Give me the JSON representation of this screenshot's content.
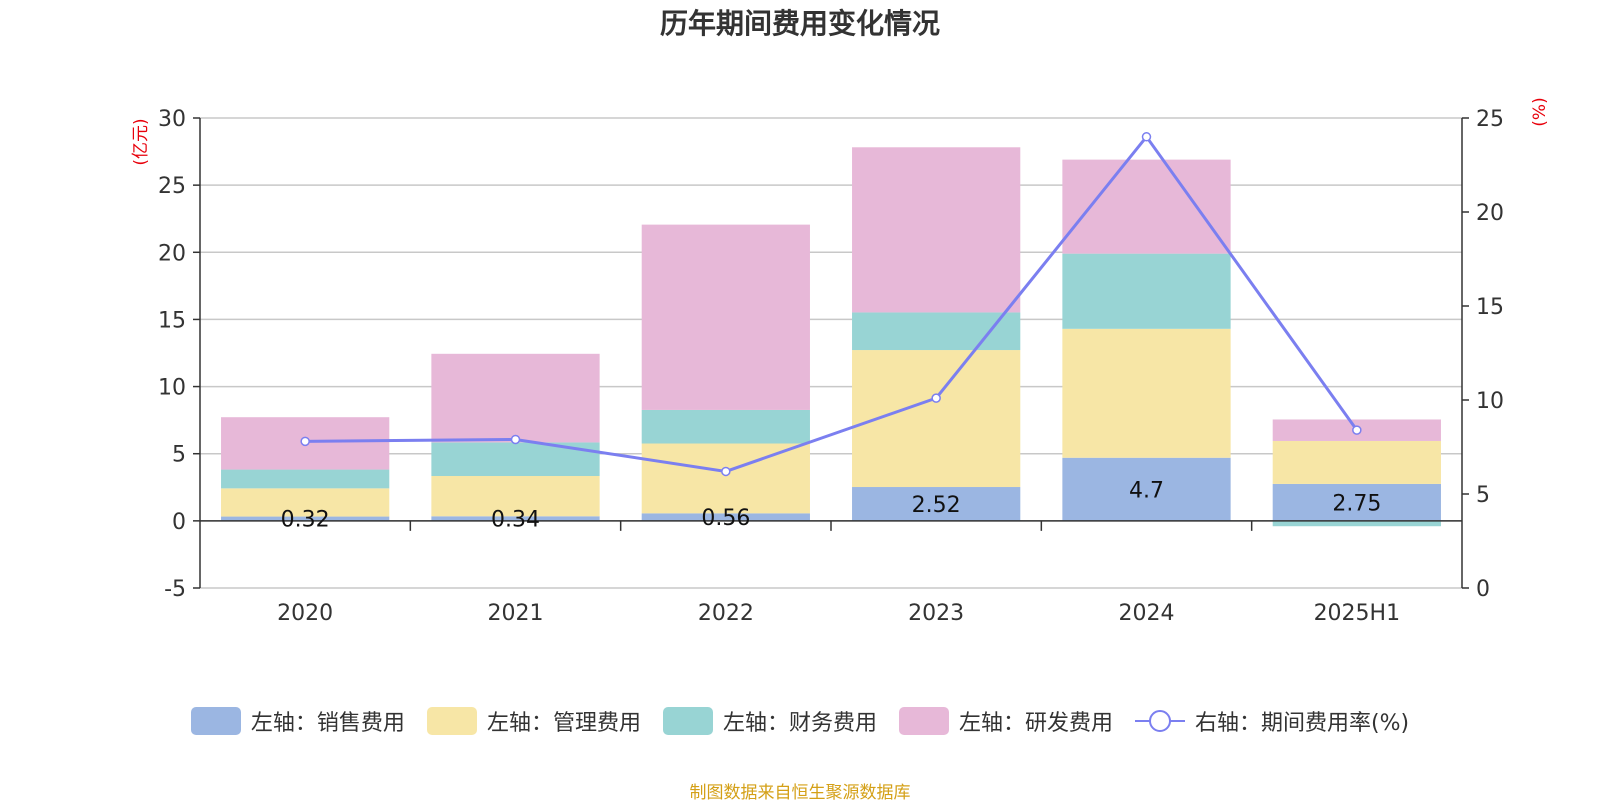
{
  "chart_data": {
    "type": "bar",
    "title": "历年期间费用变化情况",
    "categories": [
      "2020",
      "2021",
      "2022",
      "2023",
      "2024",
      "2025H1"
    ],
    "stacked": true,
    "left_axis": {
      "label": "(亿元)",
      "ylim": [
        -5,
        30
      ],
      "ticks": [
        -5,
        0,
        5,
        10,
        15,
        20,
        25,
        30
      ]
    },
    "right_axis": {
      "label": "(%)",
      "ylim": [
        0,
        25
      ],
      "ticks": [
        0,
        5,
        10,
        15,
        20,
        25
      ]
    },
    "grid": true,
    "legend_position": "bottom",
    "series": [
      {
        "name": "左轴：销售费用",
        "type": "bar",
        "axis": "left",
        "color": "#9bb6e2",
        "values": [
          0.32,
          0.34,
          0.56,
          2.52,
          4.7,
          2.75
        ],
        "data_labels": [
          "0.32",
          "0.34",
          "0.56",
          "2.52",
          "4.7",
          "2.75"
        ]
      },
      {
        "name": "左轴：管理费用",
        "type": "bar",
        "axis": "left",
        "color": "#f7e6a6",
        "values": [
          2.1,
          3.0,
          5.2,
          10.2,
          9.6,
          3.2
        ]
      },
      {
        "name": "左轴：财务费用",
        "type": "bar",
        "axis": "left",
        "color": "#98d4d4",
        "values": [
          1.4,
          2.5,
          2.5,
          2.8,
          5.6,
          -0.4
        ]
      },
      {
        "name": "左轴：研发费用",
        "type": "bar",
        "axis": "left",
        "color": "#e7b8d8",
        "values": [
          3.9,
          6.6,
          13.8,
          12.3,
          7.0,
          1.6
        ]
      },
      {
        "name": "右轴：期间费用率(%)",
        "type": "line",
        "axis": "right",
        "color": "#7b7ff0",
        "values": [
          7.8,
          7.9,
          6.2,
          10.1,
          24.0,
          8.4
        ]
      }
    ]
  },
  "footer": {
    "source": "制图数据来自恒生聚源数据库"
  }
}
